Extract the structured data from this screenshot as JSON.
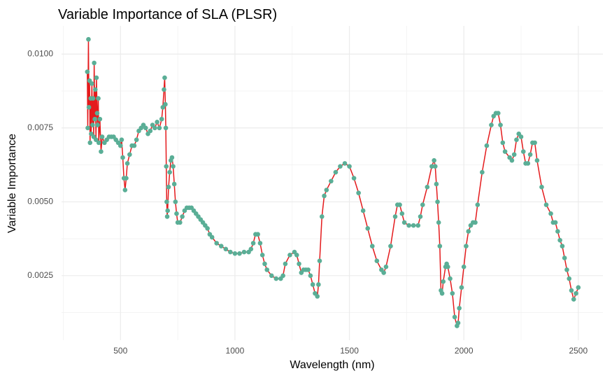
{
  "chart_data": {
    "type": "scatter",
    "title": "Variable Importance of SLA (PLSR)",
    "x_label": "Wavelength (nm)",
    "y_label": "Variable Importance",
    "color": "#5aae96",
    "line_color": "#e41a1c",
    "grid": true,
    "xlim": [
      242.5,
      2607.5
    ],
    "xticks": [
      500,
      1000,
      1500,
      2000,
      2500
    ],
    "ylim": [
      0.000316,
      0.010954
    ],
    "yticks": [
      {
        "value": 0.0025,
        "label": "0.0025"
      },
      {
        "value": 0.005,
        "label": "0.0050"
      },
      {
        "value": 0.0075,
        "label": "0.0075"
      },
      {
        "value": 0.01,
        "label": "0.0100"
      }
    ],
    "x": [
      355,
      357,
      360,
      362,
      365,
      367,
      370,
      372,
      375,
      378,
      380,
      383,
      385,
      388,
      390,
      393,
      395,
      398,
      400,
      403,
      405,
      410,
      415,
      420,
      430,
      440,
      450,
      460,
      470,
      480,
      490,
      500,
      505,
      510,
      515,
      520,
      525,
      530,
      540,
      550,
      560,
      570,
      580,
      590,
      600,
      610,
      620,
      630,
      640,
      650,
      660,
      670,
      680,
      685,
      690,
      693,
      696,
      698,
      700,
      702,
      704,
      706,
      710,
      715,
      720,
      725,
      730,
      735,
      740,
      745,
      750,
      760,
      770,
      780,
      790,
      800,
      810,
      820,
      830,
      840,
      850,
      860,
      870,
      880,
      890,
      900,
      920,
      940,
      960,
      980,
      1000,
      1020,
      1040,
      1060,
      1070,
      1080,
      1090,
      1100,
      1110,
      1120,
      1130,
      1140,
      1160,
      1180,
      1200,
      1210,
      1220,
      1240,
      1260,
      1270,
      1280,
      1290,
      1300,
      1310,
      1320,
      1330,
      1340,
      1350,
      1360,
      1365,
      1370,
      1380,
      1390,
      1400,
      1420,
      1440,
      1460,
      1480,
      1500,
      1520,
      1540,
      1560,
      1580,
      1600,
      1620,
      1640,
      1650,
      1660,
      1680,
      1700,
      1710,
      1720,
      1730,
      1740,
      1760,
      1780,
      1800,
      1810,
      1820,
      1840,
      1860,
      1870,
      1875,
      1880,
      1885,
      1890,
      1895,
      1900,
      1905,
      1910,
      1920,
      1925,
      1930,
      1940,
      1950,
      1960,
      1970,
      1975,
      1980,
      1990,
      2000,
      2010,
      2020,
      2030,
      2040,
      2050,
      2060,
      2080,
      2100,
      2120,
      2130,
      2140,
      2150,
      2160,
      2170,
      2180,
      2200,
      2210,
      2220,
      2230,
      2240,
      2250,
      2260,
      2270,
      2280,
      2290,
      2300,
      2310,
      2320,
      2340,
      2360,
      2380,
      2390,
      2400,
      2410,
      2420,
      2430,
      2440,
      2450,
      2460,
      2470,
      2480,
      2490,
      2500
    ],
    "values": [
      0.0094,
      0.0075,
      0.0105,
      0.0082,
      0.0091,
      0.007,
      0.0085,
      0.0073,
      0.009,
      0.0076,
      0.0085,
      0.0072,
      0.0097,
      0.0078,
      0.0088,
      0.0071,
      0.0092,
      0.008,
      0.0076,
      0.0085,
      0.007,
      0.0078,
      0.0067,
      0.0072,
      0.007,
      0.0071,
      0.0072,
      0.0072,
      0.0072,
      0.0071,
      0.007,
      0.0069,
      0.0071,
      0.0065,
      0.0058,
      0.0054,
      0.0058,
      0.0063,
      0.0066,
      0.0069,
      0.0069,
      0.0071,
      0.0074,
      0.0075,
      0.0076,
      0.0075,
      0.0073,
      0.0074,
      0.0076,
      0.0075,
      0.0077,
      0.0075,
      0.0078,
      0.0082,
      0.0088,
      0.0092,
      0.0083,
      0.0075,
      0.0062,
      0.005,
      0.0045,
      0.0047,
      0.0055,
      0.006,
      0.0064,
      0.0065,
      0.0062,
      0.0056,
      0.005,
      0.0046,
      0.0043,
      0.0043,
      0.0045,
      0.0047,
      0.0048,
      0.0048,
      0.0048,
      0.0047,
      0.0046,
      0.0045,
      0.0044,
      0.0043,
      0.0042,
      0.0041,
      0.0039,
      0.0038,
      0.0036,
      0.0035,
      0.0034,
      0.0033,
      0.00325,
      0.00325,
      0.0033,
      0.0033,
      0.0034,
      0.0036,
      0.0039,
      0.0039,
      0.0036,
      0.0032,
      0.0029,
      0.0027,
      0.0025,
      0.0024,
      0.0024,
      0.0025,
      0.0029,
      0.0032,
      0.0033,
      0.0032,
      0.0029,
      0.0026,
      0.0027,
      0.0027,
      0.0027,
      0.0025,
      0.0022,
      0.0019,
      0.0018,
      0.0022,
      0.003,
      0.0045,
      0.0052,
      0.0054,
      0.0057,
      0.006,
      0.0062,
      0.0063,
      0.0062,
      0.0058,
      0.0053,
      0.0047,
      0.0041,
      0.0035,
      0.003,
      0.0027,
      0.0026,
      0.0028,
      0.0035,
      0.0045,
      0.0049,
      0.0049,
      0.0046,
      0.0043,
      0.0042,
      0.0042,
      0.0042,
      0.0045,
      0.0049,
      0.0055,
      0.0062,
      0.0064,
      0.0062,
      0.0056,
      0.005,
      0.0043,
      0.0035,
      0.002,
      0.0019,
      0.0023,
      0.0028,
      0.0029,
      0.0028,
      0.0024,
      0.0019,
      0.0011,
      0.0008,
      0.0009,
      0.0014,
      0.0021,
      0.0028,
      0.0035,
      0.004,
      0.0042,
      0.0043,
      0.0043,
      0.0049,
      0.006,
      0.0069,
      0.0076,
      0.0079,
      0.008,
      0.008,
      0.0076,
      0.007,
      0.0067,
      0.0065,
      0.0064,
      0.0066,
      0.0071,
      0.0073,
      0.0072,
      0.0067,
      0.0063,
      0.0063,
      0.0066,
      0.007,
      0.007,
      0.0064,
      0.0055,
      0.0049,
      0.0046,
      0.0043,
      0.0043,
      0.004,
      0.0037,
      0.0035,
      0.0031,
      0.0027,
      0.0024,
      0.002,
      0.0017,
      0.0019,
      0.0021
    ]
  }
}
